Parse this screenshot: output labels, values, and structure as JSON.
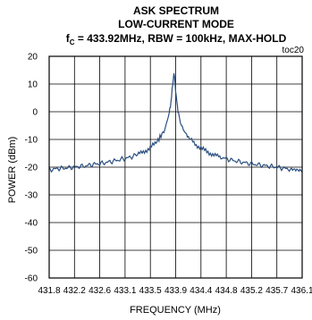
{
  "chart_data": {
    "type": "line",
    "title_lines": [
      "ASK SPECTRUM",
      "LOW-CURRENT MODE"
    ],
    "subtitle": {
      "prefix": "f",
      "subscript": "C",
      "rest": " = 433.92MHz, RBW = 100kHz, MAX-HOLD"
    },
    "figure_id": "toc20",
    "xlabel": "FREQUENCY (MHz)",
    "ylabel": "POWER (dBm)",
    "xlim": [
      431.8,
      436.1
    ],
    "ylim": [
      -60,
      20
    ],
    "x_ticks": [
      "431.8",
      "432.2",
      "432.6",
      "433.1",
      "433.5",
      "433.9",
      "434.4",
      "434.8",
      "435.2",
      "435.7",
      "436.1"
    ],
    "y_ticks": [
      "20",
      "10",
      "0",
      "-10",
      "-20",
      "-30",
      "-40",
      "-50",
      "-60"
    ],
    "grid": true,
    "line_color": "#2b4f7f",
    "series": [
      {
        "points": [
          [
            431.8,
            -21.0
          ],
          [
            431.95,
            -20.5
          ],
          [
            432.1,
            -20.3
          ],
          [
            432.25,
            -19.9
          ],
          [
            432.4,
            -19.6
          ],
          [
            432.55,
            -19.0
          ],
          [
            432.7,
            -18.6
          ],
          [
            432.85,
            -18.0
          ],
          [
            433.0,
            -17.3
          ],
          [
            433.15,
            -16.6
          ],
          [
            433.3,
            -15.5
          ],
          [
            433.4,
            -14.5
          ],
          [
            433.5,
            -13.3
          ],
          [
            433.6,
            -11.5
          ],
          [
            433.65,
            -10.3
          ],
          [
            433.7,
            -8.7
          ],
          [
            433.75,
            -6.9
          ],
          [
            433.78,
            -5.3
          ],
          [
            433.81,
            -3.2
          ],
          [
            433.84,
            -0.6
          ],
          [
            433.86,
            2.0
          ],
          [
            433.88,
            5.5
          ],
          [
            433.9,
            10.0
          ],
          [
            433.92,
            14.0
          ],
          [
            433.94,
            10.2
          ],
          [
            433.96,
            5.4
          ],
          [
            433.98,
            1.8
          ],
          [
            434.0,
            -0.8
          ],
          [
            434.03,
            -3.3
          ],
          [
            434.06,
            -5.1
          ],
          [
            434.1,
            -7.0
          ],
          [
            434.15,
            -8.8
          ],
          [
            434.2,
            -10.0
          ],
          [
            434.3,
            -12.0
          ],
          [
            434.4,
            -13.4
          ],
          [
            434.5,
            -14.6
          ],
          [
            434.6,
            -15.6
          ],
          [
            434.7,
            -16.3
          ],
          [
            434.85,
            -17.2
          ],
          [
            435.0,
            -17.9
          ],
          [
            435.15,
            -18.5
          ],
          [
            435.3,
            -19.0
          ],
          [
            435.45,
            -19.4
          ],
          [
            435.6,
            -19.8
          ],
          [
            435.75,
            -20.3
          ],
          [
            435.9,
            -20.8
          ],
          [
            436.1,
            -21.7
          ]
        ]
      }
    ]
  }
}
